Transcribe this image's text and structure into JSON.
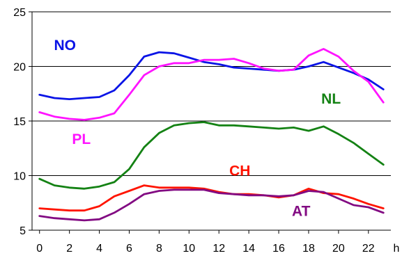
{
  "chart_data": {
    "type": "line",
    "title": "",
    "xlabel": "h",
    "ylabel": "",
    "x": [
      0,
      1,
      2,
      3,
      4,
      5,
      6,
      7,
      8,
      9,
      10,
      11,
      12,
      13,
      14,
      15,
      16,
      17,
      18,
      19,
      20,
      21,
      22,
      23
    ],
    "xlim": [
      -0.5,
      23.5
    ],
    "ylim": [
      5,
      25
    ],
    "x_ticks": [
      "0",
      "2",
      "4",
      "6",
      "8",
      "10",
      "12",
      "14",
      "16",
      "18",
      "20",
      "22"
    ],
    "y_ticks": [
      "5",
      "10",
      "15",
      "20",
      "25"
    ],
    "grid": "horizontal",
    "legend": "inline labels",
    "series": [
      {
        "name": "NO",
        "color": "#0a14e6",
        "values": [
          17.4,
          17.1,
          17.0,
          17.1,
          17.2,
          17.8,
          19.2,
          20.9,
          21.3,
          21.2,
          20.8,
          20.4,
          20.2,
          19.9,
          19.8,
          19.7,
          19.6,
          19.7,
          20.0,
          20.4,
          19.9,
          19.4,
          18.8,
          17.9
        ]
      },
      {
        "name": "PL",
        "color": "#ff14ff",
        "values": [
          15.8,
          15.4,
          15.2,
          15.1,
          15.3,
          15.7,
          17.4,
          19.2,
          20.0,
          20.3,
          20.3,
          20.6,
          20.6,
          20.7,
          20.3,
          19.8,
          19.6,
          19.7,
          21.0,
          21.6,
          20.9,
          19.6,
          18.6,
          16.7
        ]
      },
      {
        "name": "NL",
        "color": "#148214",
        "values": [
          9.7,
          9.1,
          8.9,
          8.8,
          9.0,
          9.4,
          10.6,
          12.6,
          13.9,
          14.6,
          14.8,
          14.9,
          14.6,
          14.6,
          14.5,
          14.4,
          14.3,
          14.4,
          14.1,
          14.5,
          13.8,
          13.0,
          12.0,
          11.0
        ]
      },
      {
        "name": "CH",
        "color": "#ff1400",
        "values": [
          7.0,
          6.9,
          6.8,
          6.8,
          7.2,
          8.1,
          8.6,
          9.1,
          8.9,
          8.9,
          8.9,
          8.8,
          8.5,
          8.3,
          8.3,
          8.2,
          8.0,
          8.2,
          8.8,
          8.4,
          8.3,
          7.9,
          7.4,
          7.0
        ]
      },
      {
        "name": "AT",
        "color": "#820a82",
        "values": [
          6.3,
          6.1,
          6.0,
          5.9,
          6.0,
          6.6,
          7.4,
          8.3,
          8.6,
          8.7,
          8.7,
          8.7,
          8.4,
          8.3,
          8.2,
          8.2,
          8.1,
          8.2,
          8.6,
          8.5,
          7.9,
          7.3,
          7.1,
          6.6
        ]
      }
    ],
    "labels": [
      {
        "series": "NO",
        "text": "NO",
        "x": 1.7,
        "y": 21.5
      },
      {
        "series": "PL",
        "text": "PL",
        "x": 2.8,
        "y": 12.9
      },
      {
        "series": "NL",
        "text": "NL",
        "x": 19.5,
        "y": 16.6
      },
      {
        "series": "CH",
        "text": "CH",
        "x": 13.4,
        "y": 10.0
      },
      {
        "series": "AT",
        "text": "AT",
        "x": 17.5,
        "y": 6.3
      }
    ]
  }
}
